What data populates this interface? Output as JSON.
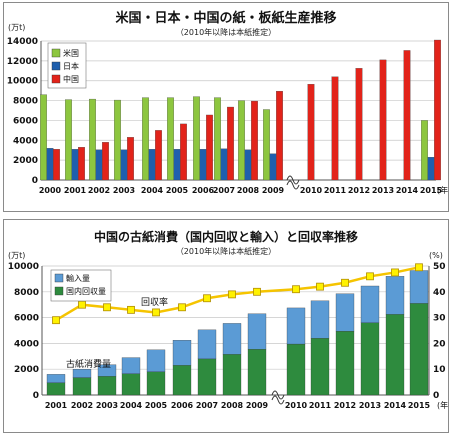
{
  "chart_data": [
    {
      "type": "bar",
      "title": "米国・日本・中国の紙・板紙生産推移",
      "subtitle": "（2010年以降は本紙推定）",
      "ylabel": "(万t)",
      "xunit": "(年)",
      "ylim": [
        0,
        14000
      ],
      "yticks": [
        0,
        2000,
        4000,
        6000,
        8000,
        10000,
        12000,
        14000
      ],
      "grid": true,
      "legend_position": "top-left",
      "axis_break": true,
      "categories": [
        "2000",
        "2001",
        "2002",
        "2003",
        "2004",
        "2005",
        "2006",
        "2007",
        "2008",
        "2009",
        "2010",
        "2011",
        "2012",
        "2013",
        "2014",
        "2015"
      ],
      "series": [
        {
          "name": "米国",
          "color": "#8dc63f",
          "values": [
            8600,
            8100,
            8150,
            8050,
            8300,
            8300,
            8400,
            8300,
            8000,
            7100,
            null,
            null,
            null,
            null,
            null,
            6000
          ]
        },
        {
          "name": "日本",
          "color": "#1f5fad",
          "values": [
            3200,
            3100,
            3050,
            3050,
            3100,
            3100,
            3100,
            3150,
            3050,
            2650,
            null,
            null,
            null,
            null,
            null,
            2300
          ]
        },
        {
          "name": "中国",
          "color": "#e2231a",
          "values": [
            3100,
            3300,
            3800,
            4300,
            5000,
            5650,
            6550,
            7350,
            7950,
            8950,
            9650,
            10400,
            11250,
            12100,
            13050,
            14100
          ]
        }
      ]
    },
    {
      "type": "bar",
      "title": "中国の古紙消費（国内回収と輸入）と回収率推移",
      "subtitle": "（2010年以降は本紙推定）",
      "ylabel": "(万t)",
      "y2label": "(%)",
      "xunit": "(年)",
      "stacked": true,
      "ylim": [
        0,
        10000
      ],
      "yticks": [
        0,
        2000,
        4000,
        6000,
        8000,
        10000
      ],
      "y2lim": [
        0,
        50
      ],
      "y2ticks": [
        0,
        10,
        20,
        30,
        40,
        50
      ],
      "grid": true,
      "legend_position": "top-left",
      "axis_break": true,
      "annotations": [
        "回収率",
        "古紙消費量"
      ],
      "categories": [
        "2001",
        "2002",
        "2003",
        "2004",
        "2005",
        "2006",
        "2007",
        "2008",
        "2009",
        "2010",
        "2011",
        "2012",
        "2013",
        "2014",
        "2015"
      ],
      "series": [
        {
          "name": "輸入量",
          "color": "#5b9bd5",
          "values": [
            650,
            650,
            900,
            1250,
            1700,
            1950,
            2250,
            2400,
            2750,
            2800,
            2900,
            2900,
            2850,
            2950,
            2550
          ]
        },
        {
          "name": "国内回収量",
          "color": "#2e8b3e",
          "values": [
            950,
            1350,
            1450,
            1650,
            1800,
            2300,
            2800,
            3150,
            3550,
            3950,
            4400,
            4950,
            5600,
            6250,
            7100
          ]
        },
        {
          "name": "回収率",
          "type": "line",
          "axis": "y2",
          "color": "#f5c400",
          "values": [
            29,
            35,
            34,
            33,
            32,
            34,
            37.5,
            39,
            40,
            41,
            42,
            43.5,
            46,
            47.5,
            49.5
          ]
        }
      ]
    }
  ]
}
